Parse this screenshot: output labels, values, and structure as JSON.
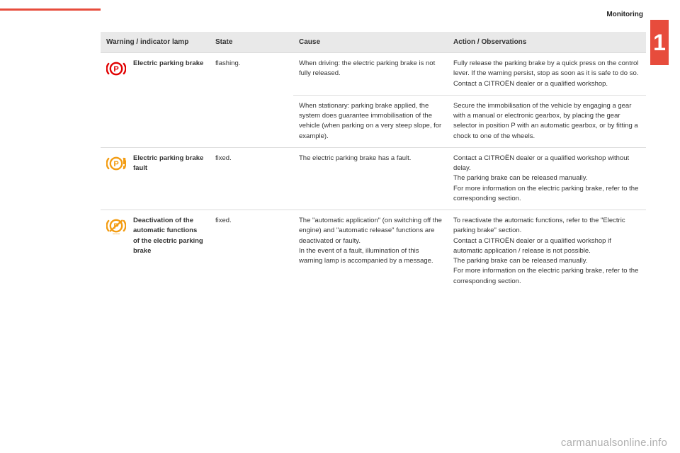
{
  "page": {
    "section_title": "Monitoring",
    "chapter_number": "1",
    "watermark": "carmanualsonline.info",
    "red_bar_color": "#e74c3c",
    "background": "#ffffff",
    "header_bg": "#e9e9e9",
    "border_color": "#dcdcdc",
    "text_color": "#333333"
  },
  "table": {
    "headers": {
      "col1": "Warning / indicator lamp",
      "col2": "State",
      "col3": "Cause",
      "col4": "Action / Observations"
    },
    "rows": [
      {
        "icon": "electric-parking-brake-red",
        "icon_color": "#e10000",
        "name": "Electric parking brake",
        "state": "flashing.",
        "cause": "When driving: the electric parking brake is not fully released.",
        "action": "Fully release the parking brake by a quick press on the control lever. If the warning persist, stop as soon as it is safe to do so.\nContact a CITROËN dealer or a qualified workshop.",
        "rowspan_icon": 2,
        "rowspan_name": 2,
        "rowspan_state": 2
      },
      {
        "cause": "When stationary: parking brake applied, the system does guarantee immobilisation of the vehicle (when parking on a very steep slope, for example).",
        "action": "Secure the immobilisation of the vehicle by engaging a gear with a manual or electronic gearbox, by placing the gear selector in position P with an automatic gearbox, or by fitting a chock to one of the wheels."
      },
      {
        "icon": "electric-parking-brake-fault",
        "icon_color": "#f39c12",
        "name": "Electric parking brake fault",
        "state": "fixed.",
        "cause": "The electric parking brake has a fault.",
        "action": "Contact a CITROËN dealer or a qualified workshop without delay.\nThe parking brake can be released manually.\nFor more information on the electric parking brake, refer to the corresponding section."
      },
      {
        "icon": "deactivation-auto-parking",
        "icon_color": "#f39c12",
        "name": "Deactivation of the automatic functions of the electric parking brake",
        "state": "fixed.",
        "cause": "The \"automatic application\" (on switching off the engine) and \"automatic release\" functions are deactivated or faulty.\nIn the event of a fault, illumination of this warning lamp is accompanied by a message.",
        "action": "To reactivate the automatic functions, refer to the \"Electric parking brake\" section.\nContact a CITROËN dealer or a qualified workshop if automatic application / release is not possible.\nThe parking brake can be released manually.\nFor more information on the electric parking brake, refer to the corresponding section."
      }
    ]
  }
}
